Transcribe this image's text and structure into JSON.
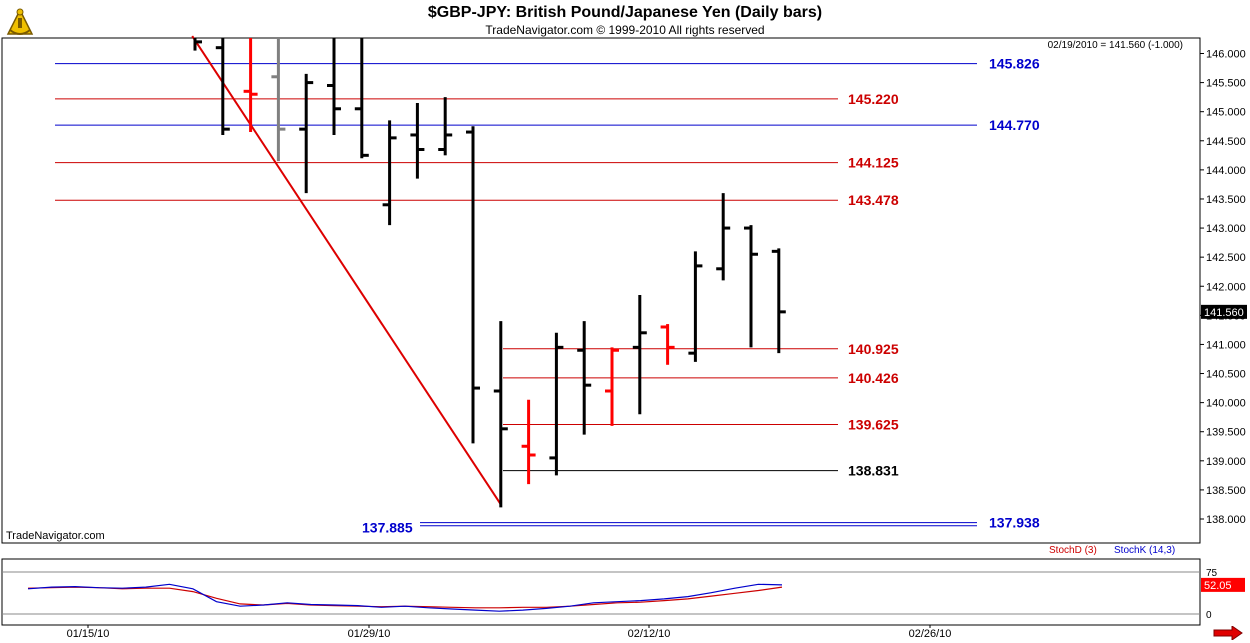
{
  "header": {
    "title": "$GBP-JPY:  British Pound/Japanese Yen  (Daily bars)",
    "subtitle": "TradeNavigator.com © 1999-2010 All rights reserved",
    "last_info": "02/19/2010 = 141.560 (-1.000)",
    "watermark": "TradeNavigator.com"
  },
  "icons": {
    "logo": "sextant-logo-icon",
    "nav_arrow": "right-arrow-icon"
  },
  "colors": {
    "up_bar": "#000000",
    "down_bar": "#ff0000",
    "neutral_bar": "#808080",
    "blue_level": "#0000cc",
    "red_level": "#cc0000",
    "trendline": "#dd0000",
    "stoch_d": "#cc0000",
    "stoch_k": "#0000cc",
    "last_price_box": "#000000",
    "stoch_readout_box": "#ff0000"
  },
  "chart_data": [
    {
      "type": "ohlc",
      "symbol": "$GBP-JPY",
      "title": "$GBP-JPY:  British Pound/Japanese Yen  (Daily bars)",
      "ylim": [
        137.8,
        146.3
      ],
      "y_ticks": [
        138.0,
        138.5,
        139.0,
        139.5,
        140.0,
        140.5,
        141.0,
        141.5,
        142.0,
        142.5,
        143.0,
        143.5,
        144.0,
        144.5,
        145.0,
        145.5,
        146.0
      ],
      "y_tick_labels": [
        "138.000",
        "138.500",
        "139.000",
        "139.500",
        "140.000",
        "140.500",
        "141.000",
        "141.500",
        "142.000",
        "142.500",
        "143.000",
        "143.500",
        "144.000",
        "144.500",
        "145.000",
        "145.500",
        "146.000"
      ],
      "x_tick_labels": [
        "01/15/10",
        "01/29/10",
        "02/12/10",
        "02/26/10"
      ],
      "last_price_label": "141.560",
      "bars": [
        {
          "high": 146.4,
          "low": 146.05,
          "open": 146.3,
          "close": 146.2,
          "color": "up"
        },
        {
          "high": 146.4,
          "low": 144.6,
          "open": 146.1,
          "close": 144.7,
          "color": "up"
        },
        {
          "high": 146.4,
          "low": 144.65,
          "open": 145.35,
          "close": 145.3,
          "color": "down"
        },
        {
          "high": 146.4,
          "low": 144.15,
          "open": 145.6,
          "close": 144.7,
          "color": "neutral"
        },
        {
          "high": 145.65,
          "low": 143.6,
          "open": 144.7,
          "close": 145.5,
          "color": "up"
        },
        {
          "high": 146.4,
          "low": 144.6,
          "open": 145.45,
          "close": 145.05,
          "color": "up"
        },
        {
          "high": 146.4,
          "low": 144.2,
          "open": 145.05,
          "close": 144.25,
          "color": "up"
        },
        {
          "high": 144.85,
          "low": 143.05,
          "open": 143.4,
          "close": 144.55,
          "color": "up"
        },
        {
          "high": 145.15,
          "low": 143.85,
          "open": 144.6,
          "close": 144.35,
          "color": "up"
        },
        {
          "high": 145.25,
          "low": 144.25,
          "open": 144.35,
          "close": 144.6,
          "color": "up"
        },
        {
          "high": 144.75,
          "low": 139.3,
          "open": 144.65,
          "close": 140.25,
          "color": "up"
        },
        {
          "high": 141.4,
          "low": 138.2,
          "open": 140.2,
          "close": 139.55,
          "color": "up"
        },
        {
          "high": 140.05,
          "low": 138.6,
          "open": 139.25,
          "close": 139.1,
          "color": "down"
        },
        {
          "high": 141.2,
          "low": 138.75,
          "open": 139.05,
          "close": 140.95,
          "color": "up"
        },
        {
          "high": 141.4,
          "low": 139.45,
          "open": 140.9,
          "close": 140.3,
          "color": "up"
        },
        {
          "high": 140.95,
          "low": 139.6,
          "open": 140.2,
          "close": 140.9,
          "color": "down"
        },
        {
          "high": 141.85,
          "low": 139.8,
          "open": 140.95,
          "close": 141.2,
          "color": "up"
        },
        {
          "high": 141.35,
          "low": 140.65,
          "open": 141.3,
          "close": 140.95,
          "color": "down"
        },
        {
          "high": 142.6,
          "low": 140.7,
          "open": 140.85,
          "close": 142.35,
          "color": "up"
        },
        {
          "high": 143.6,
          "low": 142.1,
          "open": 142.3,
          "close": 143.0,
          "color": "up"
        },
        {
          "high": 143.05,
          "low": 140.95,
          "open": 143.0,
          "close": 142.55,
          "color": "up"
        },
        {
          "high": 142.65,
          "low": 140.85,
          "open": 142.6,
          "close": 141.56,
          "color": "up"
        }
      ],
      "levels": [
        {
          "value": 145.826,
          "label": "145.826",
          "color": "blue"
        },
        {
          "value": 145.22,
          "label": "145.220",
          "color": "red"
        },
        {
          "value": 144.77,
          "label": "144.770",
          "color": "blue"
        },
        {
          "value": 144.125,
          "label": "144.125",
          "color": "red"
        },
        {
          "value": 143.478,
          "label": "143.478",
          "color": "red"
        },
        {
          "value": 140.925,
          "label": "140.925",
          "color": "red"
        },
        {
          "value": 140.426,
          "label": "140.426",
          "color": "red"
        },
        {
          "value": 139.625,
          "label": "139.625",
          "color": "red"
        },
        {
          "value": 138.831,
          "label": "138.831",
          "color": "black"
        },
        {
          "value": 137.938,
          "label": "137.938",
          "color": "blue"
        },
        {
          "value": 137.885,
          "label": "137.885",
          "color": "blue"
        }
      ],
      "trendline": {
        "from_bar": -0.1,
        "from_value": 146.3,
        "to_bar": 11,
        "to_value": 138.25
      }
    },
    {
      "type": "line",
      "indicator": "Stochastic",
      "ylim": [
        0,
        100
      ],
      "y_ticks": [
        0,
        75
      ],
      "y_tick_labels": [
        "0",
        "75"
      ],
      "readout": "52.05",
      "series": [
        {
          "name": "StochD (3)",
          "color": "red",
          "values": [
            46,
            47,
            48,
            47,
            45,
            46,
            46,
            40,
            28,
            18,
            16,
            19,
            16,
            15,
            14,
            13,
            14,
            13,
            12,
            11,
            11,
            12,
            12,
            14,
            17,
            20,
            21,
            24,
            27,
            32,
            37,
            42,
            48
          ]
        },
        {
          "name": "StochK (14,3)",
          "color": "blue",
          "values": [
            45,
            48,
            49,
            47,
            46,
            48,
            53,
            45,
            22,
            14,
            16,
            20,
            17,
            16,
            15,
            12,
            14,
            11,
            9,
            7,
            5,
            7,
            10,
            14,
            20,
            22,
            24,
            27,
            31,
            38,
            46,
            53,
            52
          ]
        }
      ]
    }
  ]
}
